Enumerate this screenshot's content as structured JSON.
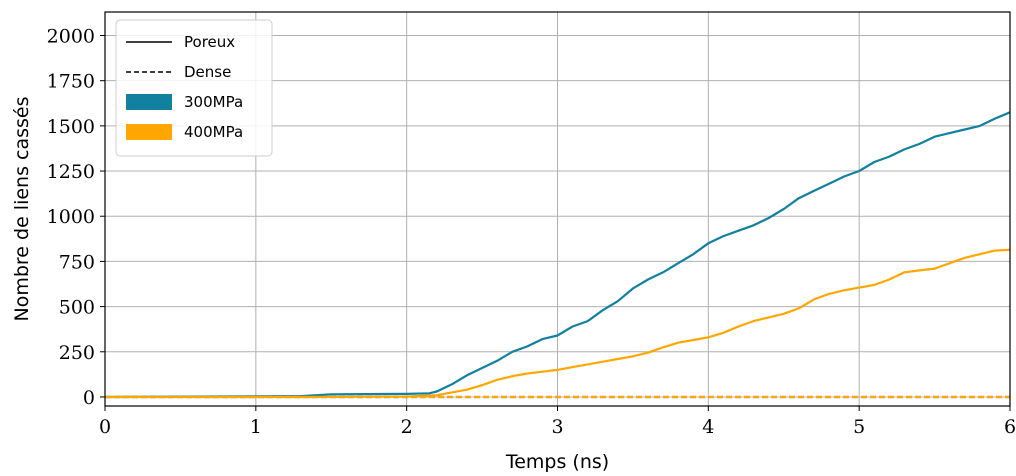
{
  "chart_data": {
    "type": "line",
    "xlabel": "Temps (ns)",
    "ylabel": "Nombre de liens cassés",
    "xlim": [
      0,
      6
    ],
    "ylim": [
      -50,
      2130
    ],
    "xticks": [
      0,
      1,
      2,
      3,
      4,
      5,
      6
    ],
    "yticks": [
      0,
      250,
      500,
      750,
      1000,
      1250,
      1500,
      1750,
      2000
    ],
    "grid": true,
    "legend_position": "top-left",
    "legend": [
      {
        "label": "Poreux",
        "kind": "solid-line",
        "color": "#000000"
      },
      {
        "label": "Dense",
        "kind": "dashed-line",
        "color": "#000000"
      },
      {
        "label": "300MPa",
        "kind": "patch",
        "color": "#12809f"
      },
      {
        "label": "400MPa",
        "kind": "patch",
        "color": "#ffa600"
      }
    ],
    "series": [
      {
        "name": "300MPa",
        "color": "#12809f",
        "linestyle": "solid",
        "x": [
          0,
          1.3,
          1.5,
          2.0,
          2.15,
          2.2,
          2.3,
          2.4,
          2.5,
          2.6,
          2.7,
          2.8,
          2.9,
          3.0,
          3.1,
          3.2,
          3.3,
          3.4,
          3.5,
          3.6,
          3.7,
          3.8,
          3.9,
          4.0,
          4.1,
          4.2,
          4.3,
          4.4,
          4.5,
          4.6,
          4.7,
          4.8,
          4.9,
          5.0,
          5.1,
          5.2,
          5.3,
          5.4,
          5.5,
          5.6,
          5.7,
          5.8,
          5.9,
          6.0
        ],
        "y": [
          0,
          5,
          15,
          17,
          20,
          30,
          70,
          120,
          160,
          200,
          250,
          280,
          320,
          340,
          390,
          420,
          480,
          530,
          600,
          650,
          690,
          740,
          790,
          850,
          890,
          920,
          950,
          990,
          1040,
          1100,
          1140,
          1180,
          1220,
          1250,
          1300,
          1330,
          1370,
          1400,
          1440,
          1460,
          1480,
          1500,
          1540,
          1575
        ]
      },
      {
        "name": "400MPa",
        "color": "#ffa600",
        "linestyle": "solid",
        "x": [
          0,
          1.3,
          2.0,
          2.2,
          2.3,
          2.4,
          2.5,
          2.6,
          2.7,
          2.8,
          2.9,
          3.0,
          3.1,
          3.2,
          3.3,
          3.4,
          3.5,
          3.6,
          3.7,
          3.8,
          3.9,
          4.0,
          4.1,
          4.2,
          4.3,
          4.4,
          4.5,
          4.6,
          4.7,
          4.8,
          4.9,
          5.0,
          5.1,
          5.2,
          5.3,
          5.4,
          5.5,
          5.6,
          5.7,
          5.8,
          5.9,
          6.0
        ],
        "y": [
          0,
          0,
          2,
          10,
          25,
          40,
          65,
          95,
          115,
          130,
          140,
          150,
          165,
          180,
          195,
          210,
          225,
          245,
          275,
          300,
          315,
          330,
          355,
          390,
          420,
          440,
          460,
          490,
          540,
          570,
          590,
          605,
          620,
          650,
          690,
          700,
          710,
          740,
          770,
          790,
          810,
          815
        ]
      },
      {
        "name": "",
        "color": "#12809f",
        "linestyle": "dashed",
        "x": [
          0,
          6
        ],
        "y": [
          0,
          0
        ]
      },
      {
        "name": "",
        "color": "#ffa600",
        "linestyle": "dashed",
        "x": [
          0,
          6
        ],
        "y": [
          0,
          0
        ]
      }
    ]
  }
}
